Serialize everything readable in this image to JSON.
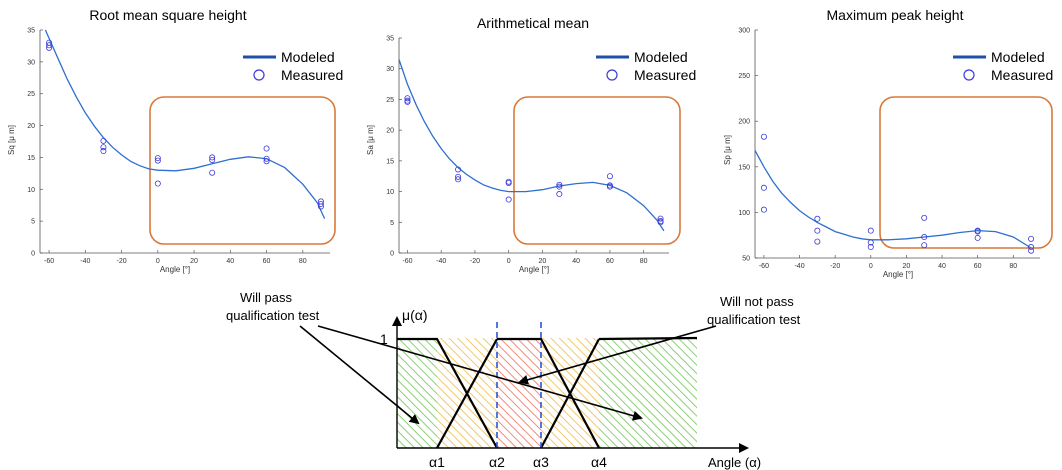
{
  "colors": {
    "model_line": "#2f6fd1",
    "model_legend": "#1f4fa8",
    "measured": "#3a3ad8",
    "highlight_box": "#d9793a",
    "hatch_green": "#8fd07a",
    "hatch_yellow": "#f0c96a",
    "hatch_red": "#f08a7a",
    "dashed": "#2a55d8"
  },
  "chart_data": [
    {
      "type": "scatter",
      "title": "Root mean square height",
      "xlabel": "Angle [°]",
      "ylabel": "Sq [μ m]",
      "xlim": [
        -65,
        95
      ],
      "ylim": [
        0,
        35
      ],
      "xticks": [
        -60,
        -40,
        -20,
        0,
        20,
        40,
        60,
        80
      ],
      "yticks": [
        0,
        5,
        10,
        15,
        20,
        25,
        30,
        35
      ],
      "legend": [
        "Modeled",
        "Measured"
      ],
      "legend_position": "top-right",
      "series": [
        {
          "name": "Modeled",
          "kind": "line",
          "x": [
            -62,
            -55,
            -50,
            -45,
            -40,
            -35,
            -30,
            -25,
            -20,
            -15,
            -10,
            -5,
            0,
            10,
            20,
            30,
            40,
            50,
            60,
            70,
            80,
            88,
            92
          ],
          "y": [
            35,
            30.5,
            27.3,
            24.5,
            22,
            19.9,
            18.1,
            16.6,
            15.4,
            14.4,
            13.7,
            13.2,
            13.0,
            12.9,
            13.3,
            14.0,
            14.7,
            15.1,
            14.8,
            13.4,
            10.8,
            7.9,
            5.4
          ]
        },
        {
          "name": "Measured",
          "kind": "scatter",
          "x": [
            -60,
            -60,
            -60,
            -30,
            -30,
            -30,
            0,
            0,
            0,
            30,
            30,
            30,
            60,
            60,
            60,
            90,
            90,
            90
          ],
          "y": [
            33,
            32.6,
            32.2,
            17.6,
            16.6,
            16.0,
            14.9,
            14.5,
            10.9,
            15.0,
            14.6,
            12.6,
            16.4,
            14.8,
            14.4,
            8.1,
            7.7,
            7.3
          ]
        }
      ]
    },
    {
      "type": "scatter",
      "title": "Arithmetical mean",
      "xlabel": "Angle [°]",
      "ylabel": "Sa [μ m]",
      "xlim": [
        -65,
        95
      ],
      "ylim": [
        0,
        35
      ],
      "xticks": [
        -60,
        -40,
        -20,
        0,
        20,
        40,
        60,
        80
      ],
      "yticks": [
        0,
        5,
        10,
        15,
        20,
        25,
        30,
        35
      ],
      "legend": [
        "Modeled",
        "Measured"
      ],
      "legend_position": "top-right",
      "series": [
        {
          "name": "Modeled",
          "kind": "line",
          "x": [
            -65,
            -60,
            -55,
            -50,
            -45,
            -40,
            -35,
            -30,
            -25,
            -20,
            -15,
            -10,
            -5,
            0,
            10,
            20,
            30,
            40,
            50,
            60,
            70,
            80,
            88,
            92
          ],
          "y": [
            31.5,
            27.5,
            24.2,
            21.4,
            19,
            17,
            15.3,
            13.9,
            12.8,
            11.9,
            11.1,
            10.6,
            10.2,
            10.0,
            10.0,
            10.3,
            10.9,
            11.3,
            11.5,
            11.0,
            9.8,
            7.7,
            5.3,
            3.6
          ]
        },
        {
          "name": "Measured",
          "kind": "scatter",
          "x": [
            -60,
            -60,
            -60,
            -30,
            -30,
            -30,
            0,
            0,
            0,
            30,
            30,
            30,
            60,
            60,
            60,
            90,
            90,
            90
          ],
          "y": [
            25.2,
            24.8,
            24.6,
            13.6,
            12.4,
            12.0,
            11.6,
            11.4,
            8.7,
            11.1,
            10.8,
            9.6,
            12.5,
            11.0,
            10.8,
            5.6,
            5.2,
            5.0
          ]
        }
      ]
    },
    {
      "type": "scatter",
      "title": "Maximum peak height",
      "xlabel": "Angle [°]",
      "ylabel": "Sp [μ m]",
      "xlim": [
        -65,
        95
      ],
      "ylim": [
        50,
        300
      ],
      "xticks": [
        -60,
        -40,
        -20,
        0,
        20,
        40,
        60,
        80
      ],
      "yticks": [
        50,
        100,
        150,
        200,
        250,
        300
      ],
      "legend": [
        "Modeled",
        "Measured"
      ],
      "legend_position": "top-right",
      "series": [
        {
          "name": "Modeled",
          "kind": "line",
          "x": [
            -65,
            -60,
            -55,
            -50,
            -45,
            -40,
            -35,
            -30,
            -25,
            -20,
            -15,
            -10,
            -5,
            0,
            10,
            20,
            30,
            40,
            50,
            60,
            70,
            80,
            90
          ],
          "y": [
            168,
            150,
            134,
            121,
            111,
            102,
            95,
            89,
            84,
            79,
            76,
            73,
            71,
            70,
            70,
            71,
            73,
            75,
            78,
            80,
            79,
            73,
            61
          ]
        },
        {
          "name": "Measured",
          "kind": "scatter",
          "x": [
            -60,
            -60,
            -60,
            -30,
            -30,
            -30,
            0,
            0,
            0,
            30,
            30,
            30,
            60,
            60,
            60,
            90,
            90,
            90
          ],
          "y": [
            183,
            127,
            103,
            93,
            80,
            68,
            80,
            67,
            62,
            94,
            73,
            64,
            80,
            79,
            72,
            71,
            62,
            58
          ]
        }
      ]
    }
  ],
  "diagram": {
    "y_axis_label": "μ(α)",
    "y_one": "1",
    "x_axis_label": "Angle (α)",
    "alphas": [
      "α1",
      "α2",
      "α3",
      "α4"
    ],
    "pass_text": [
      "Will pass",
      "qualification test"
    ],
    "fail_text": [
      "Will not pass",
      "qualification test"
    ]
  }
}
